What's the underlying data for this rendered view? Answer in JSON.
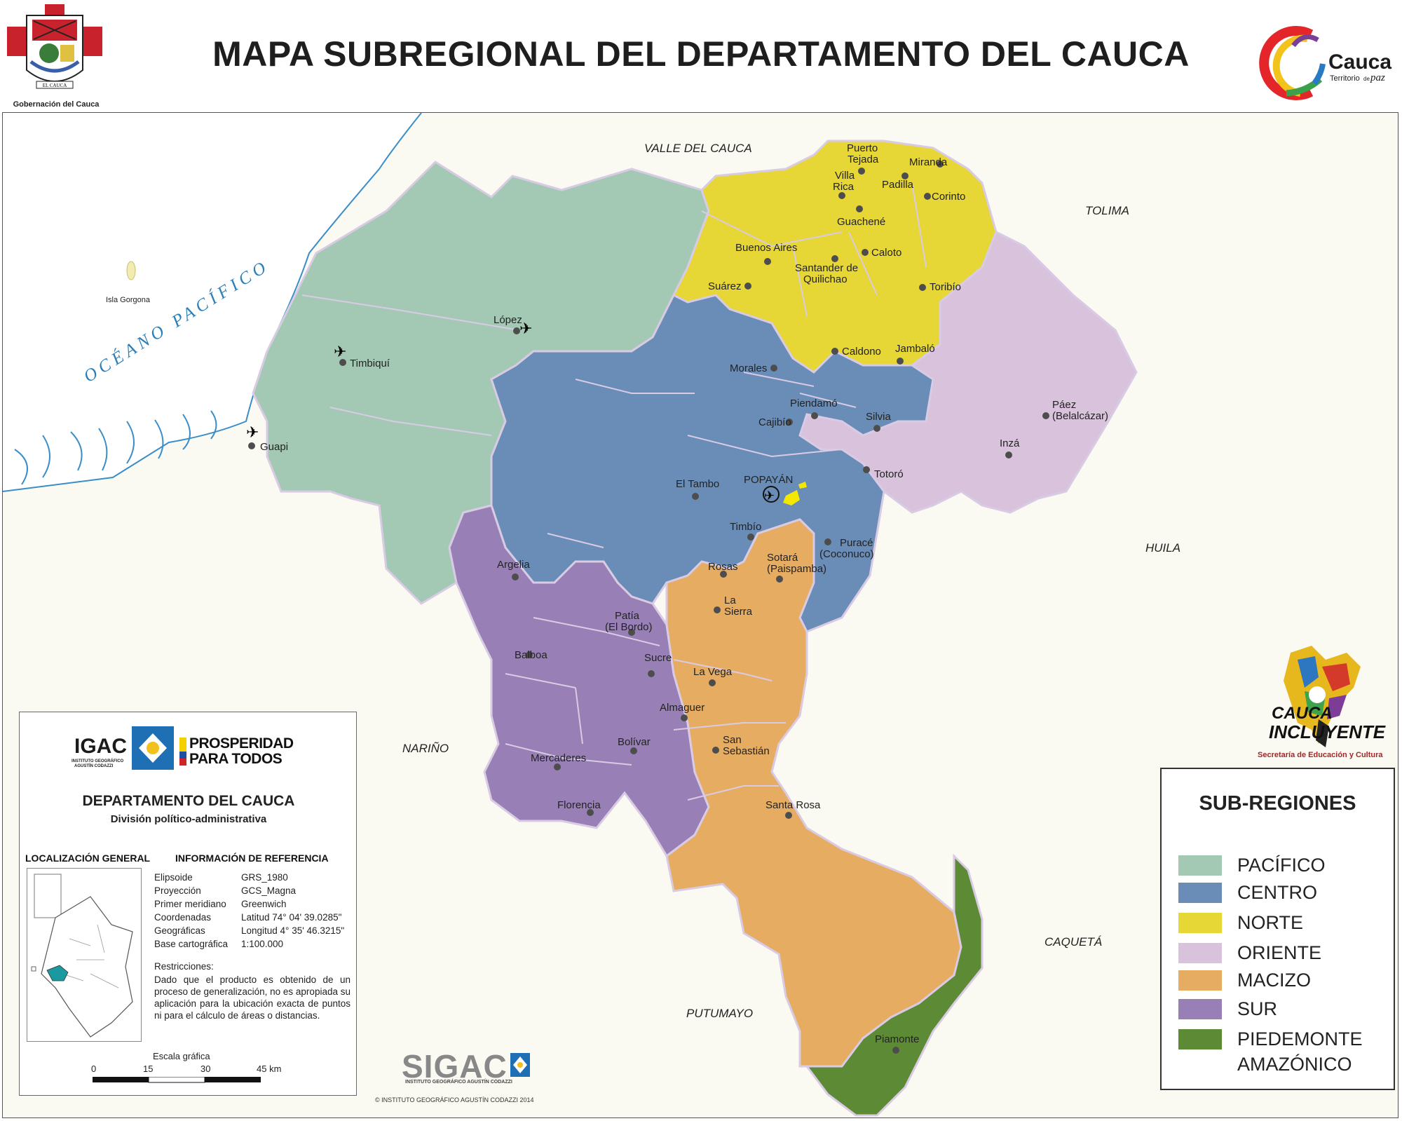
{
  "title": "MAPA SUBREGIONAL DEL DEPARTAMENTO DEL CAUCA",
  "header": {
    "gov_label": "Gobernación del Cauca",
    "gov_shield_text": "EL CAUCA",
    "cauca_brand": "Cauca",
    "cauca_tagline_1": "Territorio",
    "cauca_tagline_2": "de",
    "cauca_tagline_3": "paz"
  },
  "colors": {
    "pacifico": "#a3c9b4",
    "centro": "#6a8db8",
    "norte": "#e6d636",
    "oriente": "#d8c2dc",
    "macizo": "#e6ad62",
    "sur": "#9880b7",
    "piedemonte": "#5d8a34",
    "ocean": "#ffffff",
    "land": "#fafaf2",
    "border": "#d9cbe4"
  },
  "map": {
    "ocean_label": "OCÉANO PACÍFICO",
    "island": "Isla Gorgona",
    "neighbors": [
      {
        "label": "VALLE DEL CAUCA"
      },
      {
        "label": "TOLIMA"
      },
      {
        "label": "HUILA"
      },
      {
        "label": "NARIÑO"
      },
      {
        "label": "CAQUETÁ"
      },
      {
        "label": "PUTUMAYO"
      }
    ],
    "places": [
      {
        "label": "Puerto"
      },
      {
        "label": "Tejada"
      },
      {
        "label": "Miranda"
      },
      {
        "label": "Villa"
      },
      {
        "label": "Rica"
      },
      {
        "label": "Padilla"
      },
      {
        "label": "Corinto"
      },
      {
        "label": "Guachené"
      },
      {
        "label": "Buenos Aires"
      },
      {
        "label": "Caloto"
      },
      {
        "label": "Santander de"
      },
      {
        "label": "Quilichao"
      },
      {
        "label": "Suárez"
      },
      {
        "label": "Toribío"
      },
      {
        "label": "López"
      },
      {
        "label": "Timbiquí"
      },
      {
        "label": "Caldono"
      },
      {
        "label": "Jambaló"
      },
      {
        "label": "Morales"
      },
      {
        "label": "Piendamó"
      },
      {
        "label": "Silvia"
      },
      {
        "label": "Cajibío"
      },
      {
        "label": "Páez"
      },
      {
        "label": "(Belalcázar)"
      },
      {
        "label": "Guapi"
      },
      {
        "label": "Inzá"
      },
      {
        "label": "Totoró"
      },
      {
        "label": "El Tambo"
      },
      {
        "label": "POPAYÁN"
      },
      {
        "label": "Timbío"
      },
      {
        "label": "Puracé"
      },
      {
        "label": "(Coconuco)"
      },
      {
        "label": "Argelia"
      },
      {
        "label": "Sotará"
      },
      {
        "label": "(Paispamba)"
      },
      {
        "label": "Rosas"
      },
      {
        "label": "La"
      },
      {
        "label": "Sierra"
      },
      {
        "label": "Patía"
      },
      {
        "label": "(El Bordo)"
      },
      {
        "label": "Balboa"
      },
      {
        "label": "Sucre"
      },
      {
        "label": "La Vega"
      },
      {
        "label": "Almaguer"
      },
      {
        "label": "Bolívar"
      },
      {
        "label": "San"
      },
      {
        "label": "Sebastián"
      },
      {
        "label": "Mercaderes"
      },
      {
        "label": "Florencia"
      },
      {
        "label": "Santa Rosa"
      },
      {
        "label": "Piamonte"
      }
    ]
  },
  "reference": {
    "igac": "IGAC",
    "igac_sub_1": "INSTITUTO GEOGRÁFICO",
    "igac_sub_2": "AGUSTÍN CODAZZI",
    "prosperidad_1": "PROSPERIDAD",
    "prosperidad_2": "PARA TODOS",
    "title": "DEPARTAMENTO DEL CAUCA",
    "subtitle": "División político-administrativa",
    "loc_header": "LOCALIZACIÓN GENERAL",
    "info_header": "INFORMACIÓN DE REFERENCIA",
    "rows": [
      {
        "key": "Elipsoide",
        "val": "GRS_1980"
      },
      {
        "key": "Proyección",
        "val": "GCS_Magna"
      },
      {
        "key": "Primer meridiano",
        "val": "Greenwich"
      },
      {
        "key": "Coordenadas",
        "val": "Latitud 74° 04' 39.0285\""
      },
      {
        "key": "Geográficas",
        "val": "Longitud 4° 35' 46.3215\""
      },
      {
        "key": "Base cartográfica",
        "val": "1:100.000"
      }
    ],
    "restrictions_header": "Restricciones:",
    "restrictions": "Dado que el producto es obtenido de un proceso de generalización, no es apropiada su aplicación para la ubicación exacta de puntos ni para el cálculo de áreas o distancias.",
    "scale_title": "Escala gráfica",
    "scale_labels": [
      "0",
      "15",
      "30",
      "45 km"
    ]
  },
  "legend": {
    "title": "SUB-REGIONES",
    "items": [
      {
        "label": "PACÍFICO",
        "color": "#a3c9b4"
      },
      {
        "label": "CENTRO",
        "color": "#6a8db8"
      },
      {
        "label": "NORTE",
        "color": "#e6d636"
      },
      {
        "label": "ORIENTE",
        "color": "#d8c2dc"
      },
      {
        "label": "MACIZO",
        "color": "#e6ad62"
      },
      {
        "label": "SUR",
        "color": "#9880b7"
      },
      {
        "label": "PIEDEMONTE",
        "color": "#5d8a34"
      }
    ],
    "item_cont": "AMAZÓNICO"
  },
  "footer": {
    "sigac": "SIGAC",
    "sigac_sub": "INSTITUTO GEOGRÁFICO AGUSTÍN CODAZZI",
    "copyright": "© INSTITUTO GEOGRÁFICO AGUSTÍN CODAZZI 2014"
  },
  "inclusive": {
    "line1": "CAUCA",
    "line2": "INCLUYENTE",
    "line3": "Secretaría de Educación y Cultura"
  }
}
